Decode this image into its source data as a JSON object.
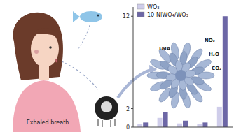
{
  "chart_data": {
    "type": "bar",
    "categories": [
      null,
      null,
      null,
      null,
      null
    ],
    "series": [
      {
        "name": "WO₃",
        "color": "#cfcdea",
        "values": [
          0.3,
          1.0,
          0.4,
          0.3,
          2.2
        ]
      },
      {
        "name": "10-NiWO₄/WO₃",
        "color": "#6d67a6",
        "values": [
          0.5,
          1.6,
          0.7,
          0.5,
          12
        ]
      }
    ],
    "ylim": [
      0,
      13
    ],
    "yticks": [
      0,
      2,
      12
    ],
    "tick_labels": "y",
    "legend": "upper left"
  },
  "labels": [
    "Exhaled breath",
    "TMA",
    "NO₂",
    "H₂O",
    "CO₂"
  ]
}
